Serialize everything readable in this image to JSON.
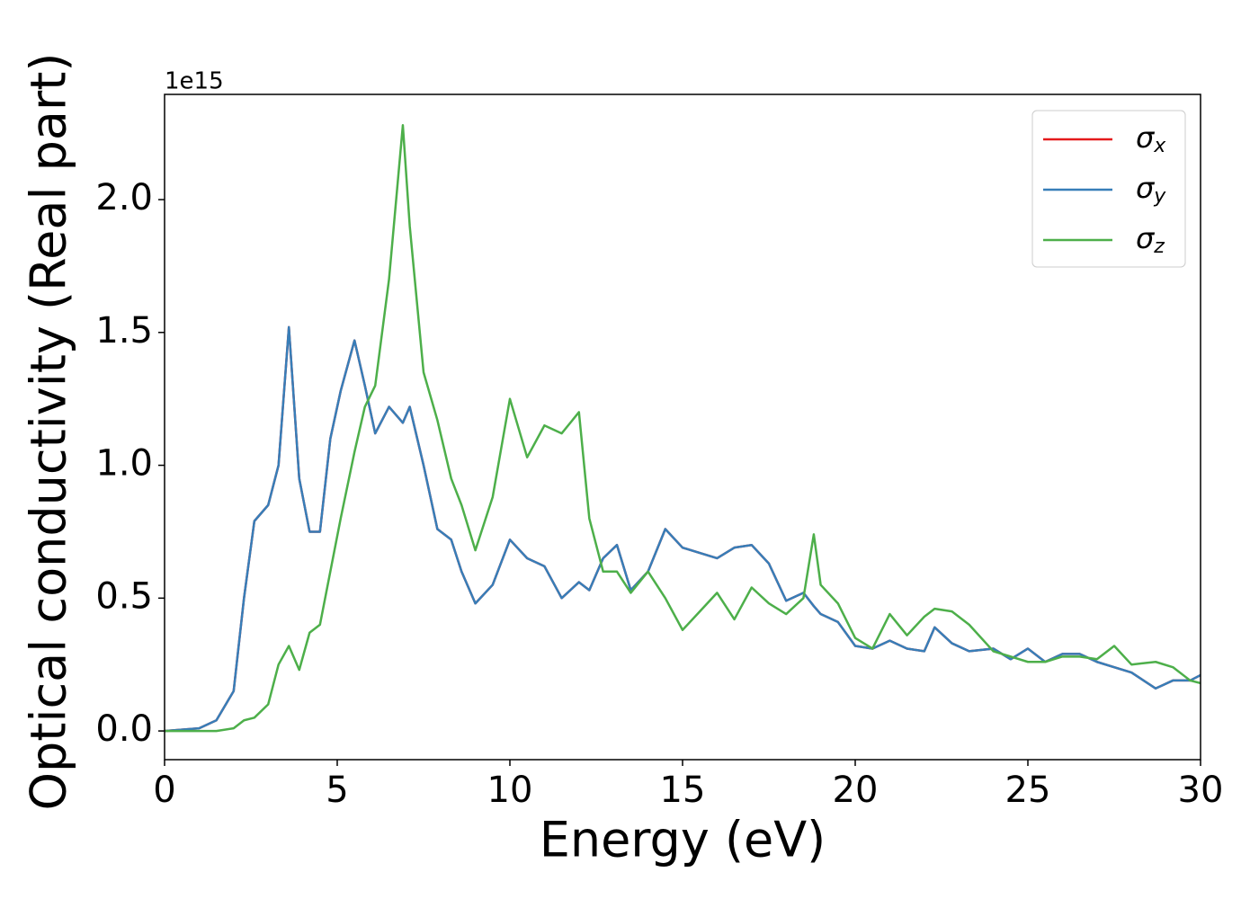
{
  "chart_data": {
    "type": "line",
    "xlabel": "Energy (eV)",
    "ylabel": "Optical conductivity (Real part)",
    "y_offset_text": "1e15",
    "x": [
      0,
      1,
      1.5,
      2,
      2.3,
      2.6,
      3,
      3.3,
      3.6,
      3.9,
      4.2,
      4.5,
      4.8,
      5.1,
      5.5,
      5.8,
      6.1,
      6.5,
      6.9,
      7.1,
      7.5,
      7.9,
      8.3,
      8.6,
      9,
      9.5,
      10,
      10.5,
      11,
      11.5,
      12,
      12.3,
      12.7,
      13.1,
      13.5,
      14,
      14.5,
      15,
      15.5,
      16,
      16.5,
      17,
      17.5,
      18,
      18.5,
      18.8,
      19,
      19.5,
      20,
      20.5,
      21,
      21.5,
      22,
      22.3,
      22.8,
      23.3,
      24,
      24.5,
      25,
      25.5,
      26,
      26.5,
      27,
      27.5,
      28,
      28.7,
      29.2,
      29.7,
      30
    ],
    "series": [
      {
        "name": "σx",
        "color": "#e41a1c",
        "values": [
          0,
          0.01,
          0.04,
          0.15,
          0.5,
          0.79,
          0.85,
          1.0,
          1.52,
          0.95,
          0.75,
          0.75,
          1.1,
          1.28,
          1.47,
          1.3,
          1.12,
          1.22,
          1.16,
          1.22,
          1.0,
          0.76,
          0.72,
          0.6,
          0.48,
          0.55,
          0.72,
          0.65,
          0.62,
          0.5,
          0.56,
          0.53,
          0.65,
          0.7,
          0.53,
          0.6,
          0.76,
          0.69,
          0.67,
          0.65,
          0.69,
          0.7,
          0.63,
          0.49,
          0.52,
          0.47,
          0.44,
          0.41,
          0.32,
          0.31,
          0.34,
          0.31,
          0.3,
          0.39,
          0.33,
          0.3,
          0.31,
          0.27,
          0.31,
          0.26,
          0.29,
          0.29,
          0.26,
          0.24,
          0.22,
          0.16,
          0.19,
          0.19,
          0.21
        ]
      },
      {
        "name": "σy",
        "color": "#377eb8",
        "values": [
          0,
          0.01,
          0.04,
          0.15,
          0.5,
          0.79,
          0.85,
          1.0,
          1.52,
          0.95,
          0.75,
          0.75,
          1.1,
          1.28,
          1.47,
          1.3,
          1.12,
          1.22,
          1.16,
          1.22,
          1.0,
          0.76,
          0.72,
          0.6,
          0.48,
          0.55,
          0.72,
          0.65,
          0.62,
          0.5,
          0.56,
          0.53,
          0.65,
          0.7,
          0.53,
          0.6,
          0.76,
          0.69,
          0.67,
          0.65,
          0.69,
          0.7,
          0.63,
          0.49,
          0.52,
          0.47,
          0.44,
          0.41,
          0.32,
          0.31,
          0.34,
          0.31,
          0.3,
          0.39,
          0.33,
          0.3,
          0.31,
          0.27,
          0.31,
          0.26,
          0.29,
          0.29,
          0.26,
          0.24,
          0.22,
          0.16,
          0.19,
          0.19,
          0.21
        ]
      },
      {
        "name": "σz",
        "color": "#4daf4a",
        "values": [
          0,
          0,
          0,
          0.01,
          0.04,
          0.05,
          0.1,
          0.25,
          0.32,
          0.23,
          0.37,
          0.4,
          0.6,
          0.8,
          1.05,
          1.22,
          1.3,
          1.7,
          2.28,
          1.9,
          1.35,
          1.17,
          0.95,
          0.85,
          0.68,
          0.88,
          1.25,
          1.03,
          1.15,
          1.12,
          1.2,
          0.8,
          0.6,
          0.6,
          0.52,
          0.6,
          0.5,
          0.38,
          0.45,
          0.52,
          0.42,
          0.54,
          0.48,
          0.44,
          0.5,
          0.74,
          0.55,
          0.48,
          0.35,
          0.31,
          0.44,
          0.36,
          0.43,
          0.46,
          0.45,
          0.4,
          0.3,
          0.28,
          0.26,
          0.26,
          0.28,
          0.28,
          0.27,
          0.32,
          0.25,
          0.26,
          0.24,
          0.19,
          0.18
        ]
      }
    ],
    "xlim": [
      0,
      30
    ],
    "xticks": [
      0,
      5,
      10,
      15,
      20,
      25,
      30
    ],
    "ylim": [
      -0.108,
      2.396
    ],
    "yticks": [
      {
        "value": 0,
        "label": "0.0"
      },
      {
        "value": 0.5,
        "label": "0.5"
      },
      {
        "value": 1,
        "label": "1.0"
      },
      {
        "value": 1.5,
        "label": "1.5"
      },
      {
        "value": 2,
        "label": "2.0"
      }
    ],
    "legend": "upper right"
  }
}
